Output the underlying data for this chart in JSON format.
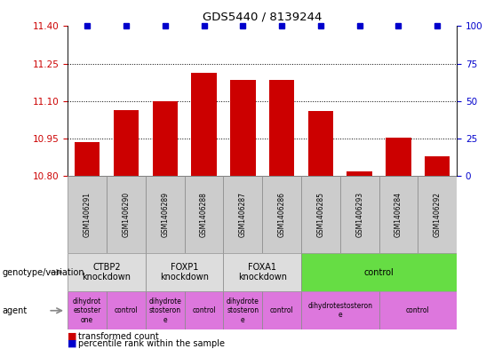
{
  "title": "GDS5440 / 8139244",
  "samples": [
    "GSM1406291",
    "GSM1406290",
    "GSM1406289",
    "GSM1406288",
    "GSM1406287",
    "GSM1406286",
    "GSM1406285",
    "GSM1406293",
    "GSM1406284",
    "GSM1406292"
  ],
  "bar_values": [
    10.935,
    11.065,
    11.1,
    11.215,
    11.185,
    11.185,
    11.06,
    10.82,
    10.955,
    10.88
  ],
  "percentile_values": [
    100,
    100,
    100,
    100,
    100,
    100,
    100,
    100,
    100,
    100
  ],
  "bar_color": "#cc0000",
  "dot_color": "#0000cc",
  "ylim_left": [
    10.8,
    11.4
  ],
  "ylim_right": [
    0,
    100
  ],
  "yticks_left": [
    10.8,
    10.95,
    11.1,
    11.25,
    11.4
  ],
  "yticks_right": [
    0,
    25,
    50,
    75,
    100
  ],
  "grid_values": [
    10.95,
    11.1,
    11.25
  ],
  "sample_bg_color": "#cccccc",
  "genotype_groups": [
    {
      "label": "CTBP2\nknockdown",
      "start": 0,
      "end": 2,
      "color": "#dddddd"
    },
    {
      "label": "FOXP1\nknockdown",
      "start": 2,
      "end": 4,
      "color": "#dddddd"
    },
    {
      "label": "FOXA1\nknockdown",
      "start": 4,
      "end": 6,
      "color": "#dddddd"
    },
    {
      "label": "control",
      "start": 6,
      "end": 10,
      "color": "#66dd44"
    }
  ],
  "agent_groups": [
    {
      "label": "dihydrot\nestoster\none",
      "start": 0,
      "end": 1,
      "color": "#dd77dd"
    },
    {
      "label": "control",
      "start": 1,
      "end": 2,
      "color": "#dd77dd"
    },
    {
      "label": "dihydrote\nstosteron\ne",
      "start": 2,
      "end": 3,
      "color": "#dd77dd"
    },
    {
      "label": "control",
      "start": 3,
      "end": 4,
      "color": "#dd77dd"
    },
    {
      "label": "dihydrote\nstosteron\ne",
      "start": 4,
      "end": 5,
      "color": "#dd77dd"
    },
    {
      "label": "control",
      "start": 5,
      "end": 6,
      "color": "#dd77dd"
    },
    {
      "label": "dihydrotestosteron\ne",
      "start": 6,
      "end": 8,
      "color": "#dd77dd"
    },
    {
      "label": "control",
      "start": 8,
      "end": 10,
      "color": "#dd77dd"
    }
  ],
  "legend_bar_label": "transformed count",
  "legend_dot_label": "percentile rank within the sample",
  "genotype_label": "genotype/variation",
  "agent_label": "agent",
  "left_axis_color": "#cc0000",
  "right_axis_color": "#0000cc"
}
